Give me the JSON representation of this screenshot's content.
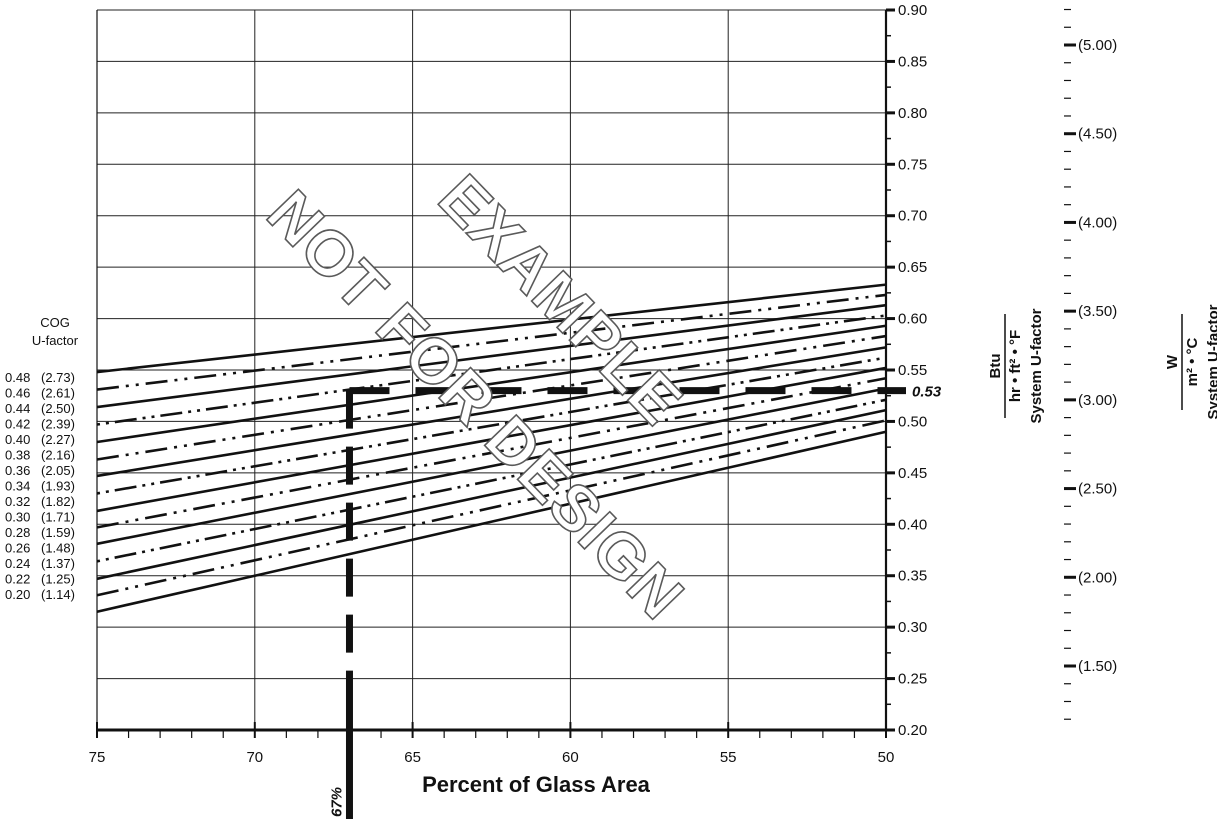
{
  "chart_data": {
    "type": "line",
    "xlabel": "Percent of Glass Area",
    "x_ticks": [
      "75",
      "70",
      "65",
      "60",
      "55",
      "50"
    ],
    "xlim": [
      75,
      50
    ],
    "ylim": [
      0.2,
      0.9
    ],
    "y_ticks": [
      "0.20",
      "0.25",
      "0.30",
      "0.35",
      "0.40",
      "0.45",
      "0.50",
      "0.55",
      "0.60",
      "0.65",
      "0.70",
      "0.75",
      "0.80",
      "0.85",
      "0.90"
    ],
    "y_label_num": "Btu",
    "y_label_den": "hr • ft² • °F",
    "y_label_name": "System U-factor",
    "si_ticks": [
      "(1.50)",
      "(2.00)",
      "(2.50)",
      "(3.00)",
      "(3.50)",
      "(4.00)",
      "(4.50)",
      "(5.00)"
    ],
    "si_values": [
      1.5,
      2.0,
      2.5,
      3.0,
      3.5,
      4.0,
      4.5,
      5.0
    ],
    "si_label_num": "W",
    "si_label_den": "m² • °C",
    "si_label_name": "System U-factor",
    "legend_title_1": "COG",
    "legend_title_2": "U-factor",
    "series": [
      {
        "name": "0.48",
        "si": "(2.73)",
        "style": "solid",
        "values": [
          [
            75,
            0.548
          ],
          [
            50,
            0.633
          ]
        ]
      },
      {
        "name": "0.46",
        "si": "(2.61)",
        "style": "dash",
        "values": [
          [
            75,
            0.531
          ],
          [
            50,
            0.623
          ]
        ]
      },
      {
        "name": "0.44",
        "si": "(2.50)",
        "style": "solid",
        "values": [
          [
            75,
            0.514
          ],
          [
            50,
            0.613
          ]
        ]
      },
      {
        "name": "0.42",
        "si": "(2.39)",
        "style": "dotted",
        "values": [
          [
            75,
            0.497
          ],
          [
            50,
            0.603
          ]
        ]
      },
      {
        "name": "0.40",
        "si": "(2.27)",
        "style": "solid",
        "values": [
          [
            75,
            0.48
          ],
          [
            50,
            0.593
          ]
        ]
      },
      {
        "name": "0.38",
        "si": "(2.16)",
        "style": "dash",
        "values": [
          [
            75,
            0.463
          ],
          [
            50,
            0.583
          ]
        ]
      },
      {
        "name": "0.36",
        "si": "(2.05)",
        "style": "solid",
        "values": [
          [
            75,
            0.447
          ],
          [
            50,
            0.572
          ]
        ]
      },
      {
        "name": "0.34",
        "si": "(1.93)",
        "style": "dotted",
        "values": [
          [
            75,
            0.43
          ],
          [
            50,
            0.562
          ]
        ]
      },
      {
        "name": "0.32",
        "si": "(1.82)",
        "style": "solid",
        "values": [
          [
            75,
            0.413
          ],
          [
            50,
            0.552
          ]
        ]
      },
      {
        "name": "0.30",
        "si": "(1.71)",
        "style": "dash",
        "values": [
          [
            75,
            0.397
          ],
          [
            50,
            0.542
          ]
        ]
      },
      {
        "name": "0.28",
        "si": "(1.59)",
        "style": "solid",
        "values": [
          [
            75,
            0.381
          ],
          [
            50,
            0.532
          ]
        ]
      },
      {
        "name": "0.26",
        "si": "(1.48)",
        "style": "dotted",
        "values": [
          [
            75,
            0.364
          ],
          [
            50,
            0.521
          ]
        ]
      },
      {
        "name": "0.24",
        "si": "(1.37)",
        "style": "solid",
        "values": [
          [
            75,
            0.347
          ],
          [
            50,
            0.511
          ]
        ]
      },
      {
        "name": "0.22",
        "si": "(1.25)",
        "style": "dash",
        "values": [
          [
            75,
            0.331
          ],
          [
            50,
            0.501
          ]
        ]
      },
      {
        "name": "0.20",
        "si": "(1.14)",
        "style": "solid",
        "values": [
          [
            75,
            0.315
          ],
          [
            50,
            0.49
          ]
        ]
      }
    ],
    "example": {
      "x": 67,
      "y": 0.53,
      "x_label": "67%",
      "y_label": "0.53"
    },
    "watermark_1": "NOT FOR DESIGN",
    "watermark_2": "EXAMPLE",
    "grid": true,
    "colors": {
      "ink": "#111111",
      "watermark_stroke": "#5a5a5a"
    }
  }
}
